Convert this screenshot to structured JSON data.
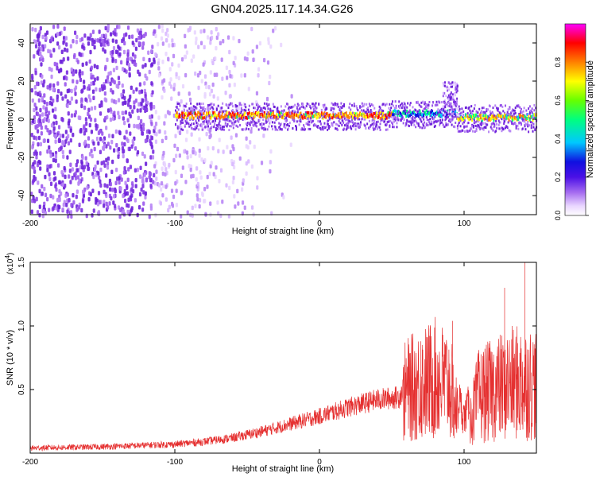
{
  "title": "GN04.2025.117.14.34.G26",
  "colors": {
    "accent_series": "#e53030",
    "spectrogram_scale": [
      "#ffffff",
      "#e9d6ff",
      "#7a2de0",
      "#1010e0",
      "#00c8ff",
      "#00ff80",
      "#ffff00",
      "#ff8000",
      "#ff0000",
      "#ff00ff"
    ]
  },
  "chart_data": [
    {
      "type": "heatmap",
      "xlabel": "Height of straight line (km)",
      "ylabel": "Frequency (Hz)",
      "xlim": [
        -200,
        150
      ],
      "ylim": [
        -50,
        50
      ],
      "x_ticks": [
        "-200",
        "-100",
        "0",
        "100"
      ],
      "y_ticks": [
        "-40",
        "-20",
        "0",
        "20",
        "40"
      ],
      "colorbar": {
        "label": "Normalized spectral amplitude",
        "range": [
          0.0,
          1.0
        ],
        "ticks": [
          "0.0",
          "0.2",
          "0.4",
          "0.6",
          "0.8"
        ]
      },
      "signal_band": {
        "segments": [
          {
            "x_from": -100,
            "x_to": 50,
            "freq_hz": 2,
            "amplitude": 0.75
          },
          {
            "x_from": 50,
            "x_to": 95,
            "freq_hz": 3,
            "amplitude": 0.35
          },
          {
            "x_from": 95,
            "x_to": 150,
            "freq_hz": 1,
            "amplitude": 0.6
          }
        ],
        "noise_region": {
          "x_from": -200,
          "x_to": -30,
          "amplitude": 0.1
        }
      }
    },
    {
      "type": "line",
      "xlabel": "Height of straight line (km)",
      "ylabel": "SNR (10 * v/v)",
      "scale_label": "(x10",
      "scale_exp": "4",
      "xlim": [
        -200,
        150
      ],
      "ylim": [
        0,
        1.5
      ],
      "x_ticks": [
        "-200",
        "-100",
        "0",
        "100"
      ],
      "y_ticks": [
        "0.5",
        "1.0",
        "1.5"
      ],
      "series": [
        {
          "x": [
            -200,
            -150,
            -100,
            -80,
            -60,
            -40,
            -20,
            0,
            20,
            40,
            55,
            60,
            70,
            80,
            90,
            100,
            110,
            120,
            130,
            140,
            150
          ],
          "y": [
            0.04,
            0.05,
            0.07,
            0.09,
            0.12,
            0.17,
            0.23,
            0.29,
            0.36,
            0.42,
            0.44,
            0.55,
            0.6,
            0.65,
            0.6,
            0.12,
            0.5,
            0.55,
            0.6,
            0.62,
            0.6
          ],
          "peaks": [
            {
              "x": 70,
              "y": 0.88
            },
            {
              "x": 80,
              "y": 1.0
            },
            {
              "x": 92,
              "y": 1.04
            },
            {
              "x": 128,
              "y": 1.3
            },
            {
              "x": 142,
              "y": 1.5
            }
          ]
        }
      ]
    }
  ]
}
